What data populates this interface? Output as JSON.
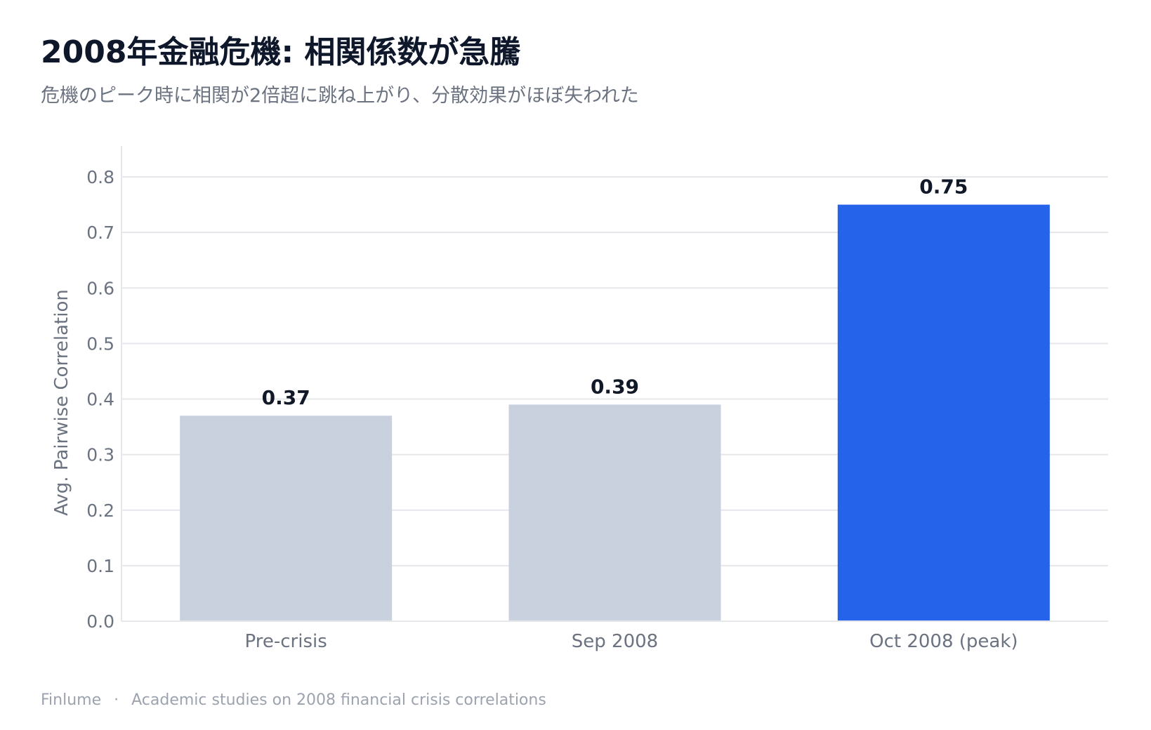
{
  "title": "2008年金融危機: 相関係数が急騰",
  "subtitle": "危機のピーク時に相関が2倍超に跳ね上がり、分散効果がほぼ失われた",
  "footer": {
    "brand": "Finlume",
    "separator": "·",
    "source": "Academic studies on 2008 financial crisis correlations"
  },
  "colors": {
    "base_bar": "#c8d1dd",
    "highlight_bar": "#2563eb",
    "grid": "#e5e7eb",
    "text": "#6b7280",
    "title": "#0f172a"
  },
  "chart_data": {
    "type": "bar",
    "categories": [
      "Pre-crisis",
      "Sep 2008",
      "Oct 2008 (peak)"
    ],
    "values": [
      0.37,
      0.39,
      0.75
    ],
    "value_labels": [
      "0.37",
      "0.39",
      "0.75"
    ],
    "highlight_index": 2,
    "title": "2008年金融危機: 相関係数が急騰",
    "subtitle": "危機のピーク時に相関が2倍超に跳ね上がり、分散効果がほぼ失われた",
    "xlabel": "",
    "ylabel": "Avg. Pairwise Correlation",
    "ylim": [
      0,
      0.8
    ],
    "yticks": [
      "0.0",
      "0.1",
      "0.2",
      "0.3",
      "0.4",
      "0.5",
      "0.6",
      "0.7",
      "0.8"
    ],
    "grid": true,
    "legend": "none"
  }
}
